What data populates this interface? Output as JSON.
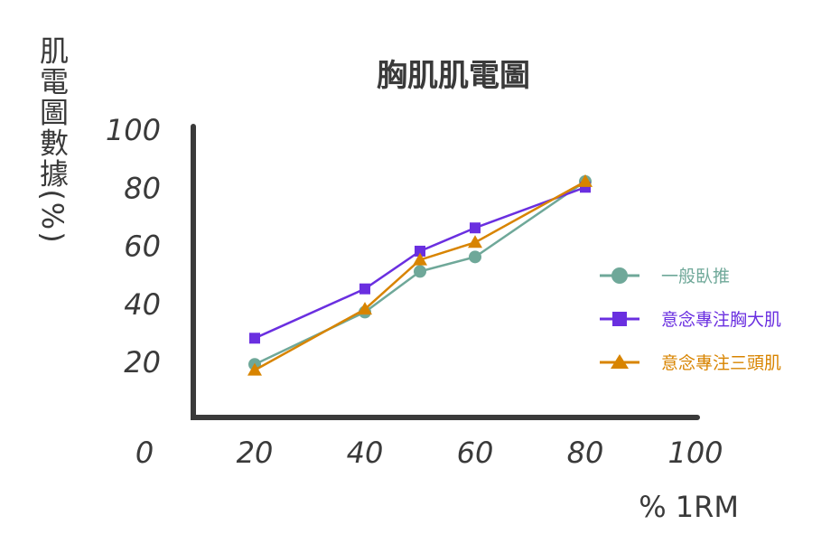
{
  "chart_data": {
    "type": "line",
    "title": "胸肌肌電圖",
    "ylabel": "肌電圖數據(%)",
    "xlabel": "% 1RM",
    "x_ticks": [
      "0",
      "20",
      "40",
      "60",
      "80",
      "100"
    ],
    "y_ticks": [
      "20",
      "40",
      "60",
      "80",
      "100"
    ],
    "xlim": [
      0,
      100
    ],
    "ylim": [
      0,
      100
    ],
    "legend_position": "right",
    "series": [
      {
        "name": "一般臥推",
        "color": "#6fa899",
        "marker": "circle",
        "points": [
          [
            20,
            19
          ],
          [
            40,
            37
          ],
          [
            50,
            51
          ],
          [
            60,
            56
          ],
          [
            80,
            82
          ]
        ]
      },
      {
        "name": "意念專注胸大肌",
        "color": "#6a2fe0",
        "marker": "square",
        "points": [
          [
            20,
            28
          ],
          [
            40,
            45
          ],
          [
            50,
            58
          ],
          [
            60,
            66
          ],
          [
            80,
            80
          ]
        ]
      },
      {
        "name": "意念專注三頭肌",
        "color": "#d88400",
        "marker": "triangle",
        "points": [
          [
            20,
            17
          ],
          [
            40,
            38
          ],
          [
            50,
            55
          ],
          [
            60,
            61
          ],
          [
            80,
            82
          ]
        ]
      }
    ]
  }
}
